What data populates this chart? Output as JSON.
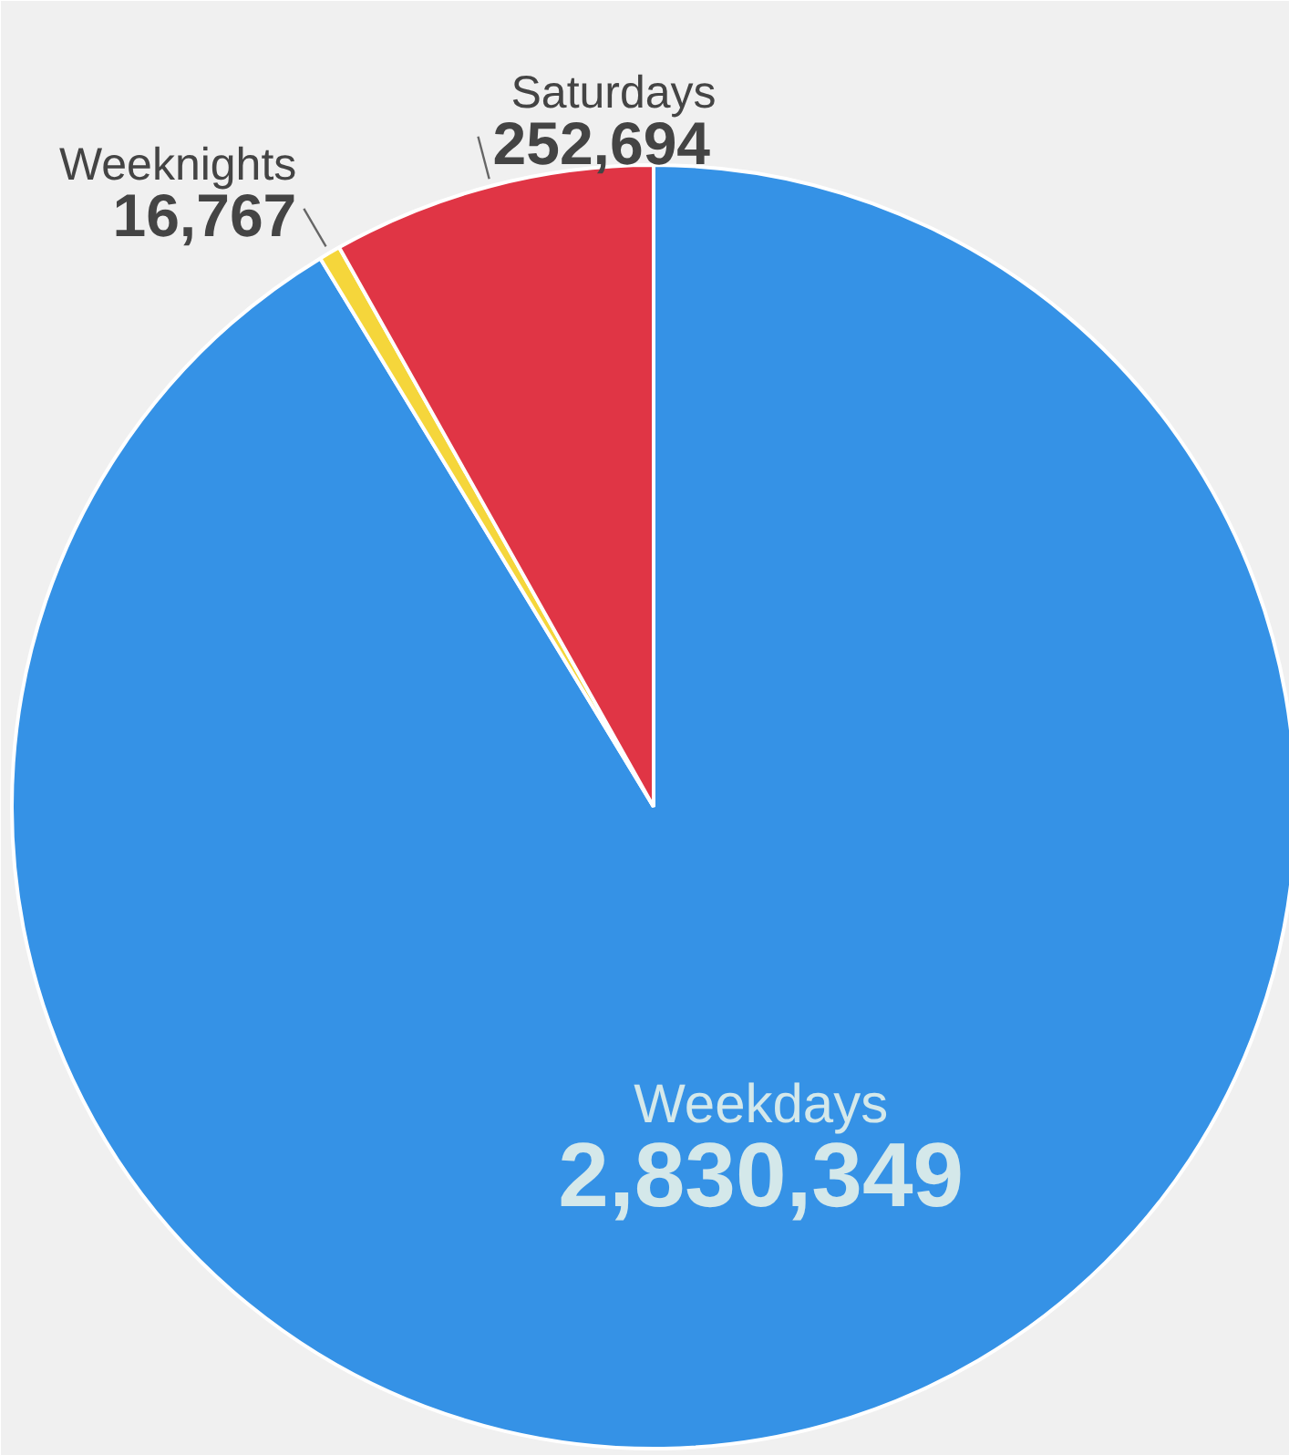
{
  "chart_data": {
    "type": "pie",
    "categories": [
      "Weekdays",
      "Weeknights",
      "Saturdays"
    ],
    "values": [
      2830349,
      16767,
      252694
    ],
    "value_labels": [
      "2,830,349",
      "16,767",
      "252,694"
    ],
    "colors": [
      "#3592e6",
      "#f5d63b",
      "#e03545"
    ]
  }
}
